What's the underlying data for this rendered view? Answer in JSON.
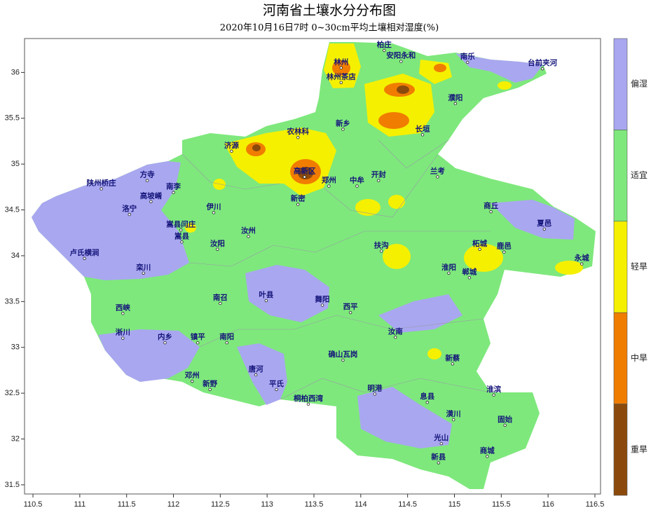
{
  "map": {
    "title": "河南省土壤水分分布图",
    "subtitle": "2020年10月16日7时 0~30cm平均土壤相对湿度(%)",
    "xlim": [
      110.41,
      116.56
    ],
    "ylim": [
      31.4,
      36.37
    ],
    "xticks": [
      110.5,
      111,
      111.5,
      112,
      112.5,
      113,
      113.5,
      114,
      114.5,
      115,
      115.5,
      116,
      116.5
    ],
    "yticks": [
      31.5,
      32,
      32.5,
      33,
      33.5,
      34,
      34.5,
      35,
      35.5,
      36
    ],
    "legend": [
      {
        "label": "偏湿",
        "color": "#a9a7f0"
      },
      {
        "label": "适宜",
        "color": "#7ee87c"
      },
      {
        "label": "轻旱",
        "color": "#f5f000"
      },
      {
        "label": "中旱",
        "color": "#f07d00"
      },
      {
        "label": "重旱",
        "color": "#8b4a0c"
      }
    ],
    "stations": [
      {
        "name": "柏庄",
        "lon": 114.25,
        "lat": 36.24
      },
      {
        "name": "安阳永和",
        "lon": 114.43,
        "lat": 36.12
      },
      {
        "name": "南乐",
        "lon": 115.14,
        "lat": 36.11
      },
      {
        "name": "台前夹河",
        "lon": 115.94,
        "lat": 36.04
      },
      {
        "name": "林州",
        "lon": 113.79,
        "lat": 36.05
      },
      {
        "name": "林州茶店",
        "lon": 113.79,
        "lat": 35.89
      },
      {
        "name": "濮阳",
        "lon": 115.01,
        "lat": 35.66
      },
      {
        "name": "长垣",
        "lon": 114.66,
        "lat": 35.32
      },
      {
        "name": "济源",
        "lon": 112.62,
        "lat": 35.14
      },
      {
        "name": "农林科",
        "lon": 113.33,
        "lat": 35.29
      },
      {
        "name": "新乡",
        "lon": 113.81,
        "lat": 35.38
      },
      {
        "name": "高新区",
        "lon": 113.4,
        "lat": 34.86
      },
      {
        "name": "郑州",
        "lon": 113.66,
        "lat": 34.76
      },
      {
        "name": "中牟",
        "lon": 113.96,
        "lat": 34.76
      },
      {
        "name": "开封",
        "lon": 114.19,
        "lat": 34.82
      },
      {
        "name": "兰考",
        "lon": 114.82,
        "lat": 34.86
      },
      {
        "name": "陕州桥庄",
        "lon": 111.23,
        "lat": 34.73
      },
      {
        "name": "方寺",
        "lon": 111.72,
        "lat": 34.82
      },
      {
        "name": "南李",
        "lon": 112.0,
        "lat": 34.69
      },
      {
        "name": "高坡崤",
        "lon": 111.76,
        "lat": 34.59
      },
      {
        "name": "洛宁",
        "lon": 111.53,
        "lat": 34.45
      },
      {
        "name": "伊川",
        "lon": 112.43,
        "lat": 34.47
      },
      {
        "name": "嵩县闫庄",
        "lon": 112.08,
        "lat": 34.28
      },
      {
        "name": "嵩县",
        "lon": 112.09,
        "lat": 34.15
      },
      {
        "name": "汝阳",
        "lon": 112.47,
        "lat": 34.07
      },
      {
        "name": "汝州",
        "lon": 112.8,
        "lat": 34.21
      },
      {
        "name": "新密",
        "lon": 113.33,
        "lat": 34.56
      },
      {
        "name": "卢氏横涧",
        "lon": 111.05,
        "lat": 33.97
      },
      {
        "name": "栾川",
        "lon": 111.68,
        "lat": 33.81
      },
      {
        "name": "西峡",
        "lon": 111.46,
        "lat": 33.37
      },
      {
        "name": "淅川",
        "lon": 111.46,
        "lat": 33.1
      },
      {
        "name": "内乡",
        "lon": 111.91,
        "lat": 33.05
      },
      {
        "name": "镇平",
        "lon": 112.26,
        "lat": 33.05
      },
      {
        "name": "南召",
        "lon": 112.5,
        "lat": 33.48
      },
      {
        "name": "南阳",
        "lon": 112.57,
        "lat": 33.05
      },
      {
        "name": "邓州",
        "lon": 112.2,
        "lat": 32.63
      },
      {
        "name": "新野",
        "lon": 112.39,
        "lat": 32.54
      },
      {
        "name": "唐河",
        "lon": 112.88,
        "lat": 32.7
      },
      {
        "name": "平氏",
        "lon": 113.1,
        "lat": 32.54
      },
      {
        "name": "桐柏西湾",
        "lon": 113.44,
        "lat": 32.38
      },
      {
        "name": "叶县",
        "lon": 112.99,
        "lat": 33.51
      },
      {
        "name": "舞阳",
        "lon": 113.59,
        "lat": 33.46
      },
      {
        "name": "西平",
        "lon": 113.89,
        "lat": 33.38
      },
      {
        "name": "确山瓦岗",
        "lon": 113.81,
        "lat": 32.86
      },
      {
        "name": "汝南",
        "lon": 114.37,
        "lat": 33.11
      },
      {
        "name": "新蔡",
        "lon": 114.98,
        "lat": 32.82
      },
      {
        "name": "明港",
        "lon": 114.15,
        "lat": 32.49
      },
      {
        "name": "息县",
        "lon": 114.71,
        "lat": 32.4
      },
      {
        "name": "潢川",
        "lon": 114.99,
        "lat": 32.21
      },
      {
        "name": "光山",
        "lon": 114.86,
        "lat": 31.95
      },
      {
        "name": "新县",
        "lon": 114.83,
        "lat": 31.74
      },
      {
        "name": "商城",
        "lon": 115.35,
        "lat": 31.81
      },
      {
        "name": "固始",
        "lon": 115.54,
        "lat": 32.15
      },
      {
        "name": "淮滨",
        "lon": 115.42,
        "lat": 32.48
      },
      {
        "name": "扶沟",
        "lon": 114.22,
        "lat": 34.05
      },
      {
        "name": "淮阳",
        "lon": 114.94,
        "lat": 33.81
      },
      {
        "name": "郸城",
        "lon": 115.16,
        "lat": 33.76
      },
      {
        "name": "柘城",
        "lon": 115.27,
        "lat": 34.07
      },
      {
        "name": "鹿邑",
        "lon": 115.53,
        "lat": 34.04
      },
      {
        "name": "永城",
        "lon": 116.36,
        "lat": 33.91
      },
      {
        "name": "夏邑",
        "lon": 115.96,
        "lat": 34.29
      },
      {
        "name": "商丘",
        "lon": 115.39,
        "lat": 34.48
      }
    ]
  }
}
